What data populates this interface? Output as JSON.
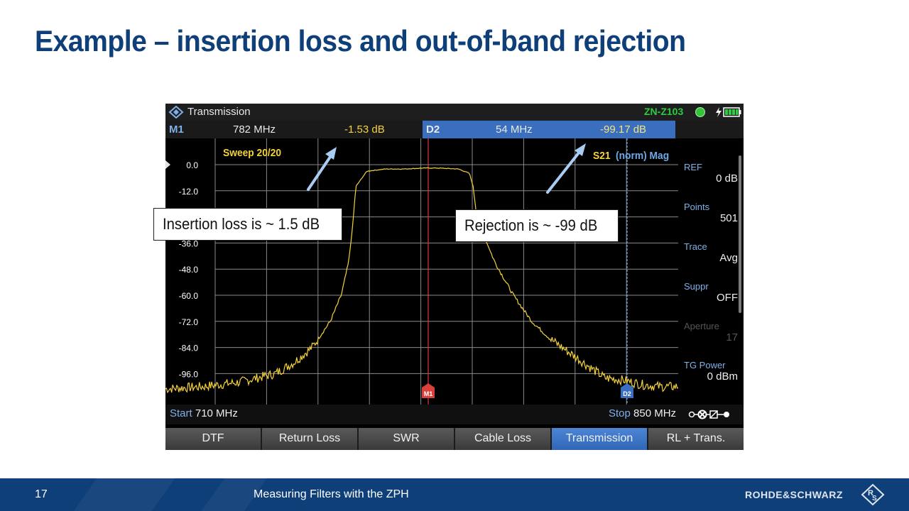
{
  "slide": {
    "title": "Example – insertion loss and out-of-band rejection",
    "page_number": "17",
    "footer_title": "Measuring Filters with the ZPH",
    "brand": "ROHDE&SCHWARZ"
  },
  "instrument": {
    "mode": "Transmission",
    "model": "ZN-Z103",
    "markers": {
      "m1": {
        "label": "M1",
        "freq": "782 MHz",
        "value": "-1.53 dB"
      },
      "d2": {
        "label": "D2",
        "freq": "54 MHz",
        "value": "-99.17 dB"
      }
    },
    "sweep": "Sweep 20/20",
    "trace_label": "S21",
    "trace_format": "(norm) Mag",
    "y_ticks": [
      "0.0",
      "-12.0",
      "-24.0",
      "-36.0",
      "-48.0",
      "-60.0",
      "-72.0",
      "-84.0",
      "-96.0"
    ],
    "plot_markers": {
      "m1": "M1",
      "d2": "D2"
    },
    "start": {
      "label": "Start",
      "value": "710 MHz"
    },
    "stop": {
      "label": "Stop",
      "value": "850 MHz"
    },
    "side_panel": [
      {
        "label": "REF",
        "value": "0 dB",
        "enabled": true
      },
      {
        "label": "Points",
        "value": "501",
        "enabled": true
      },
      {
        "label": "Trace",
        "value": "Avg",
        "enabled": true
      },
      {
        "label": "Suppr",
        "value": "OFF",
        "enabled": true
      },
      {
        "label": "Aperture",
        "value": "17",
        "enabled": false
      },
      {
        "label": "TG Power",
        "value": "0 dBm",
        "enabled": true
      }
    ],
    "softkeys": [
      {
        "label": "DTF",
        "active": false
      },
      {
        "label": "Return Loss",
        "active": false
      },
      {
        "label": "SWR",
        "active": false
      },
      {
        "label": "Cable Loss",
        "active": false
      },
      {
        "label": "Transmission",
        "active": true
      },
      {
        "label": "RL + Trans.",
        "active": false
      }
    ],
    "trace_color": "#f5d23a",
    "accent_blue": "#3a6fc0"
  },
  "callouts": {
    "insertion": "Insertion loss is ~ 1.5 dB",
    "rejection": "Rejection is ~ -99 dB"
  },
  "chart_data": {
    "type": "line",
    "xlabel": "",
    "ylabel": "",
    "xlim": [
      710,
      850
    ],
    "ylim": [
      -108,
      0
    ],
    "y_ticks": [
      0,
      -12,
      -24,
      -36,
      -48,
      -60,
      -72,
      -84,
      -96
    ],
    "grid": true,
    "series": [
      {
        "name": "S21",
        "x": [
          710,
          720,
          730,
          740,
          745,
          750,
          755,
          758,
          760,
          761,
          762,
          765,
          770,
          775,
          780,
          782,
          785,
          790,
          793,
          794,
          795,
          797,
          800,
          805,
          810,
          815,
          820,
          825,
          830,
          835,
          840,
          845,
          850
        ],
        "y": [
          -103,
          -102,
          -100,
          -96,
          -91,
          -84,
          -72,
          -60,
          -45,
          -30,
          -10,
          -3,
          -2,
          -2,
          -1.6,
          -1.53,
          -1.6,
          -2,
          -4,
          -10,
          -24,
          -33,
          -45,
          -60,
          -72,
          -80,
          -86,
          -92,
          -98,
          -99,
          -101,
          -102,
          -102
        ]
      }
    ],
    "markers": [
      {
        "name": "M1",
        "x": 782,
        "y": -1.53
      },
      {
        "name": "D2",
        "x": 836,
        "y": -99.17
      }
    ]
  }
}
